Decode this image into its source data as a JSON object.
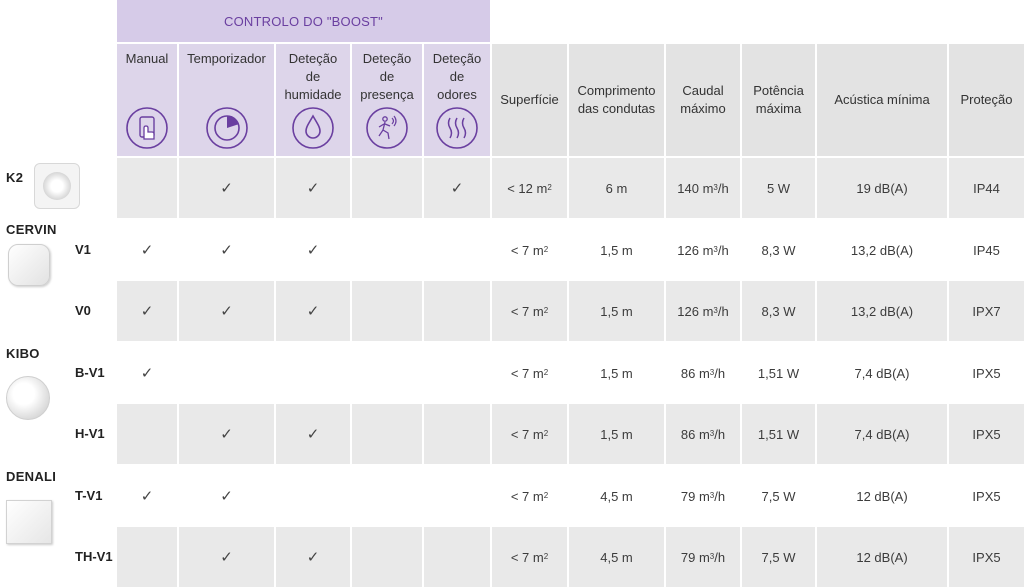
{
  "boost_title": "CONTROLO DO \"BOOST\"",
  "headers": {
    "manual": "Manual",
    "timer": "Temporizador",
    "humidity": "Deteção\nde\nhumidade",
    "presence": "Deteção\nde\npresença",
    "odor": "Deteção\nde\nodores",
    "surface": "Superfície",
    "duct_length": "Comprimento\ndas condutas",
    "max_flow": "Caudal\nmáximo",
    "max_power": "Potência\nmáxima",
    "min_acoustic": "Acústica mínima",
    "protection": "Proteção"
  },
  "check_mark": "✓",
  "models": [
    {
      "name": "K2",
      "img": "k2-fan-image"
    },
    {
      "name": "CERVIN",
      "img": "cervin-fan-image"
    },
    {
      "name": "KIBO",
      "img": "kibo-fan-image"
    },
    {
      "name": "DENALI",
      "img": "denali-fan-image"
    }
  ],
  "rows": [
    {
      "variant": "",
      "manual": "",
      "timer": "✓",
      "humidity": "✓",
      "presence": "",
      "odor": "✓",
      "surface": "< 12 m",
      "surface_sup": "2",
      "duct": "6 m",
      "flow": "140 m",
      "flow_sup": "3",
      "flow_unit": "/h",
      "power": "5 W",
      "acoustic": "19 dB(A)",
      "protection": "IP44"
    },
    {
      "variant": "V1",
      "manual": "✓",
      "timer": "✓",
      "humidity": "✓",
      "presence": "",
      "odor": "",
      "surface": "< 7 m",
      "surface_sup": "2",
      "duct": "1,5 m",
      "flow": "126 m",
      "flow_sup": "3",
      "flow_unit": "/h",
      "power": "8,3 W",
      "acoustic": "13,2 dB(A)",
      "protection": "IP45"
    },
    {
      "variant": "V0",
      "manual": "✓",
      "timer": "✓",
      "humidity": "✓",
      "presence": "",
      "odor": "",
      "surface": "< 7 m",
      "surface_sup": "2",
      "duct": "1,5 m",
      "flow": "126 m",
      "flow_sup": "3",
      "flow_unit": "/h",
      "power": "8,3 W",
      "acoustic": "13,2 dB(A)",
      "protection": "IPX7"
    },
    {
      "variant": "B-V1",
      "manual": "✓",
      "timer": "",
      "humidity": "",
      "presence": "",
      "odor": "",
      "surface": "< 7 m",
      "surface_sup": "2",
      "duct": "1,5 m",
      "flow": "86 m",
      "flow_sup": "3",
      "flow_unit": "/h",
      "power": "1,51 W",
      "acoustic": "7,4 dB(A)",
      "protection": "IPX5"
    },
    {
      "variant": "H-V1",
      "manual": "",
      "timer": "✓",
      "humidity": "✓",
      "presence": "",
      "odor": "",
      "surface": "< 7 m",
      "surface_sup": "2",
      "duct": "1,5 m",
      "flow": "86 m",
      "flow_sup": "3",
      "flow_unit": "/h",
      "power": "1,51 W",
      "acoustic": "7,4 dB(A)",
      "protection": "IPX5"
    },
    {
      "variant": "T-V1",
      "manual": "✓",
      "timer": "✓",
      "humidity": "",
      "presence": "",
      "odor": "",
      "surface": "< 7 m",
      "surface_sup": "2",
      "duct": "4,5 m",
      "flow": "79 m",
      "flow_sup": "3",
      "flow_unit": "/h",
      "power": "7,5 W",
      "acoustic": "12 dB(A)",
      "protection": "IPX5"
    },
    {
      "variant": "TH-V1",
      "manual": "",
      "timer": "✓",
      "humidity": "✓",
      "presence": "",
      "odor": "",
      "surface": "< 7 m",
      "surface_sup": "2",
      "duct": "4,5 m",
      "flow": "79 m",
      "flow_sup": "3",
      "flow_unit": "/h",
      "power": "7,5 W",
      "acoustic": "12 dB(A)",
      "protection": "IPX5"
    }
  ],
  "colors": {
    "boost_band": "#d6cbe8",
    "boost_text": "#6a3fa0",
    "icon_stroke": "#6a3fa0",
    "row_gray": "#e9e9e9",
    "header_gray": "#e3e3e3"
  }
}
